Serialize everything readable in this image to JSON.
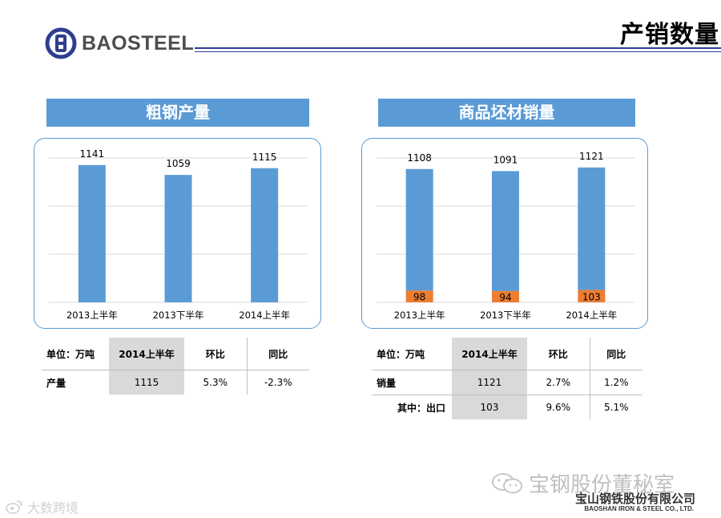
{
  "header": {
    "brand": "BAOSTEEL",
    "page_title": "产销数量"
  },
  "sections": [
    {
      "title": "粗钢产量",
      "table": {
        "unit_label": "单位：万吨",
        "columns": [
          "2014上半年",
          "环比",
          "同比"
        ],
        "rows": [
          {
            "label": "产量",
            "values": [
              "1115",
              "5.3%",
              "-2.3%"
            ]
          }
        ]
      }
    },
    {
      "title": "商品坯材销量",
      "table": {
        "unit_label": "单位：万吨",
        "columns": [
          "2014上半年",
          "环比",
          "同比"
        ],
        "rows": [
          {
            "label": "销量",
            "values": [
              "1121",
              "2.7%",
              "1.2%"
            ]
          },
          {
            "label": "其中：出口",
            "values": [
              "103",
              "9.6%",
              "5.1%"
            ]
          }
        ]
      }
    }
  ],
  "chart_data": [
    {
      "type": "bar",
      "title": "粗钢产量",
      "categories": [
        "2013上半年",
        "2013下半年",
        "2014上半年"
      ],
      "series": [
        {
          "values": [
            1141,
            1059,
            1115
          ],
          "color": "#5b9bd5"
        }
      ],
      "data_labels": [
        "1141",
        "1059",
        "1115"
      ],
      "grid": true,
      "legend": "none"
    },
    {
      "type": "bar",
      "title": "商品坯材销量",
      "categories": [
        "2013上半年",
        "2013下半年",
        "2014上半年"
      ],
      "stacked": true,
      "series": [
        {
          "values": [
            98,
            94,
            103
          ],
          "color": "#ed7d31"
        },
        {
          "values": [
            1010,
            997,
            1018
          ],
          "color": "#5b9bd5"
        }
      ],
      "total_labels": [
        "1108",
        "1091",
        "1121"
      ],
      "segment_labels": [
        "98",
        "94",
        "103"
      ],
      "grid": true,
      "legend": "none"
    }
  ],
  "footer": {
    "wechat_text": "宝钢股份董秘室",
    "company_cn": "宝山钢铁股份有限公司",
    "company_en": "BAOSHAN IRON & STEEL CO., LTD.",
    "weibo_text": "大数跨境"
  }
}
